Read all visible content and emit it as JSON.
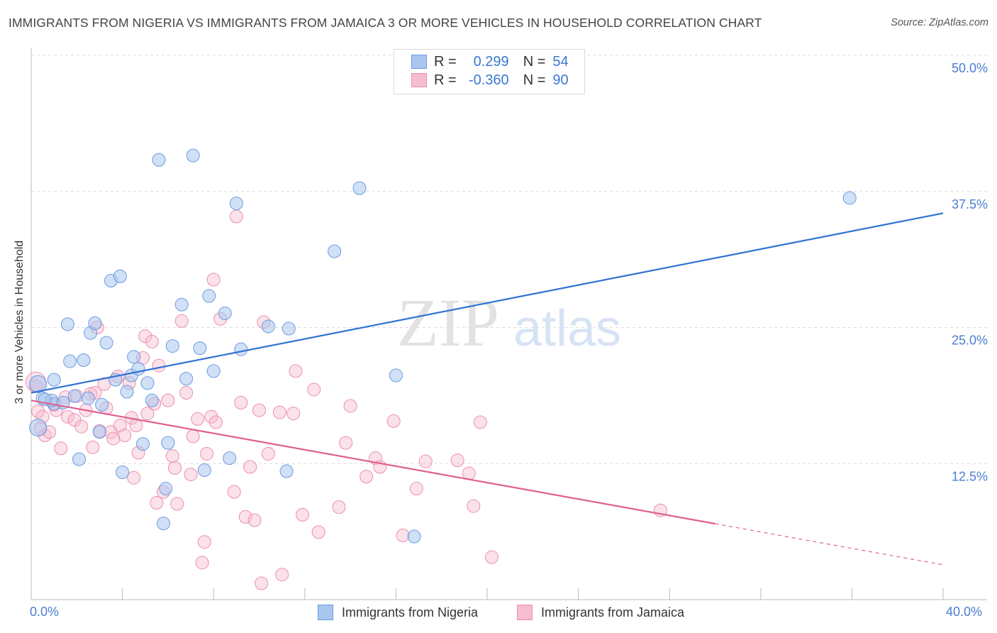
{
  "title": "IMMIGRANTS FROM NIGERIA VS IMMIGRANTS FROM JAMAICA 3 OR MORE VEHICLES IN HOUSEHOLD CORRELATION CHART",
  "source": "Source: ZipAtlas.com",
  "watermark": {
    "zip": "ZIP",
    "atlas": "atlas"
  },
  "legend": {
    "series1": {
      "r_label": "R =",
      "r_value": "0.299",
      "n_label": "N =",
      "n_value": "54"
    },
    "series2": {
      "r_label": "R =",
      "r_value": "-0.360",
      "n_label": "N =",
      "n_value": "90"
    }
  },
  "bottom_legend": {
    "series1": "Immigrants from Nigeria",
    "series2": "Immigrants from Jamaica"
  },
  "colors": {
    "nigeria_fill": "#a9c6ef",
    "nigeria_stroke": "#6b9be0",
    "nigeria_line": "#2f73d3",
    "jamaica_fill": "#f6bdd0",
    "jamaica_stroke": "#ea8fb0",
    "jamaica_line": "#e0608f",
    "tick_text": "#4a7fd0"
  },
  "chart_data": {
    "type": "scatter",
    "xlabel": "",
    "ylabel": "3 or more Vehicles in Household",
    "xlim": [
      0,
      40
    ],
    "ylim": [
      0,
      50
    ],
    "x_tick_labels": [
      "0.0%",
      "40.0%"
    ],
    "y_ticks": [
      12.5,
      25.0,
      37.5,
      50.0
    ],
    "y_tick_labels": [
      "12.5%",
      "25.0%",
      "37.5%",
      "50.0%"
    ],
    "grid": true,
    "series": [
      {
        "name": "Immigrants from Nigeria",
        "trend": {
          "x": [
            0,
            40
          ],
          "y": [
            19.0,
            35.5
          ],
          "dashed_from": null
        },
        "points": [
          [
            0.3,
            19.8
          ],
          [
            0.5,
            18.5
          ],
          [
            1.0,
            18.0
          ],
          [
            0.9,
            18.3
          ],
          [
            0.3,
            15.8
          ],
          [
            1.0,
            20.2
          ],
          [
            1.6,
            25.3
          ],
          [
            1.7,
            21.9
          ],
          [
            1.9,
            18.7
          ],
          [
            2.3,
            22.0
          ],
          [
            2.5,
            18.5
          ],
          [
            2.6,
            24.5
          ],
          [
            2.8,
            25.4
          ],
          [
            3.0,
            15.4
          ],
          [
            3.1,
            17.9
          ],
          [
            3.3,
            23.6
          ],
          [
            3.5,
            29.3
          ],
          [
            3.7,
            20.2
          ],
          [
            3.9,
            29.7
          ],
          [
            4.0,
            11.7
          ],
          [
            4.2,
            19.1
          ],
          [
            4.4,
            20.6
          ],
          [
            4.5,
            22.3
          ],
          [
            4.7,
            21.2
          ],
          [
            4.9,
            14.3
          ],
          [
            5.1,
            19.9
          ],
          [
            5.3,
            18.3
          ],
          [
            5.6,
            40.4
          ],
          [
            5.9,
            10.2
          ],
          [
            6.0,
            14.4
          ],
          [
            6.2,
            23.3
          ],
          [
            6.6,
            27.1
          ],
          [
            6.8,
            20.3
          ],
          [
            7.1,
            40.8
          ],
          [
            7.4,
            23.1
          ],
          [
            7.6,
            11.9
          ],
          [
            7.8,
            27.9
          ],
          [
            8.0,
            21.0
          ],
          [
            8.5,
            26.3
          ],
          [
            8.7,
            13.0
          ],
          [
            9.0,
            36.4
          ],
          [
            9.2,
            23.0
          ],
          [
            10.4,
            25.1
          ],
          [
            11.2,
            11.8
          ],
          [
            11.3,
            24.9
          ],
          [
            13.3,
            32.0
          ],
          [
            14.4,
            37.8
          ],
          [
            16.0,
            20.6
          ],
          [
            16.8,
            5.8
          ],
          [
            5.8,
            7.0
          ],
          [
            2.1,
            12.9
          ],
          [
            0.6,
            18.4
          ],
          [
            1.4,
            18.1
          ],
          [
            35.9,
            36.9
          ]
        ]
      },
      {
        "name": "Immigrants from Jamaica",
        "trend": {
          "x": [
            0,
            40
          ],
          "y": [
            18.3,
            3.2
          ],
          "dashed_from": 30.0
        },
        "points": [
          [
            0.2,
            19.6
          ],
          [
            0.3,
            17.3
          ],
          [
            0.5,
            16.8
          ],
          [
            0.6,
            15.1
          ],
          [
            0.8,
            15.4
          ],
          [
            1.1,
            17.4
          ],
          [
            1.3,
            13.9
          ],
          [
            1.5,
            18.6
          ],
          [
            1.6,
            16.8
          ],
          [
            1.9,
            16.5
          ],
          [
            2.0,
            18.7
          ],
          [
            2.2,
            15.9
          ],
          [
            2.4,
            17.4
          ],
          [
            2.6,
            18.9
          ],
          [
            2.7,
            14.0
          ],
          [
            2.9,
            25.0
          ],
          [
            3.0,
            15.5
          ],
          [
            3.2,
            19.8
          ],
          [
            3.3,
            17.6
          ],
          [
            3.5,
            15.4
          ],
          [
            3.6,
            14.8
          ],
          [
            3.8,
            20.5
          ],
          [
            3.9,
            16.0
          ],
          [
            4.1,
            15.1
          ],
          [
            4.3,
            19.9
          ],
          [
            4.4,
            16.7
          ],
          [
            4.5,
            11.2
          ],
          [
            4.6,
            16.0
          ],
          [
            4.7,
            13.5
          ],
          [
            4.9,
            22.2
          ],
          [
            5.0,
            24.2
          ],
          [
            5.1,
            17.1
          ],
          [
            5.3,
            23.7
          ],
          [
            5.4,
            18.0
          ],
          [
            5.5,
            8.9
          ],
          [
            5.6,
            21.5
          ],
          [
            5.8,
            9.9
          ],
          [
            6.0,
            18.3
          ],
          [
            6.2,
            13.2
          ],
          [
            6.3,
            12.1
          ],
          [
            6.4,
            8.8
          ],
          [
            6.6,
            25.6
          ],
          [
            6.8,
            19.0
          ],
          [
            7.0,
            11.5
          ],
          [
            7.1,
            15.0
          ],
          [
            7.3,
            16.6
          ],
          [
            7.5,
            3.4
          ],
          [
            7.6,
            5.3
          ],
          [
            7.7,
            13.4
          ],
          [
            7.9,
            16.8
          ],
          [
            8.0,
            29.4
          ],
          [
            8.1,
            16.3
          ],
          [
            8.3,
            25.8
          ],
          [
            8.9,
            9.9
          ],
          [
            9.0,
            35.2
          ],
          [
            9.2,
            18.1
          ],
          [
            9.4,
            7.6
          ],
          [
            9.6,
            12.2
          ],
          [
            9.8,
            7.3
          ],
          [
            10.0,
            17.4
          ],
          [
            10.1,
            1.5
          ],
          [
            10.2,
            25.5
          ],
          [
            10.4,
            13.4
          ],
          [
            10.9,
            17.2
          ],
          [
            11.0,
            2.3
          ],
          [
            11.5,
            17.1
          ],
          [
            11.6,
            21.0
          ],
          [
            11.9,
            7.8
          ],
          [
            12.4,
            19.3
          ],
          [
            12.6,
            6.2
          ],
          [
            13.5,
            8.5
          ],
          [
            13.8,
            14.4
          ],
          [
            14.0,
            17.8
          ],
          [
            14.7,
            11.3
          ],
          [
            15.1,
            13.0
          ],
          [
            15.3,
            12.2
          ],
          [
            15.9,
            16.4
          ],
          [
            16.3,
            5.9
          ],
          [
            16.9,
            10.2
          ],
          [
            17.3,
            12.7
          ],
          [
            18.7,
            12.8
          ],
          [
            19.2,
            11.6
          ],
          [
            19.4,
            8.6
          ],
          [
            19.7,
            16.3
          ],
          [
            20.2,
            3.9
          ],
          [
            27.6,
            8.2
          ],
          [
            0.4,
            15.7
          ],
          [
            1.0,
            17.9
          ],
          [
            2.8,
            19.0
          ],
          [
            0.2,
            20.0
          ]
        ]
      }
    ]
  }
}
